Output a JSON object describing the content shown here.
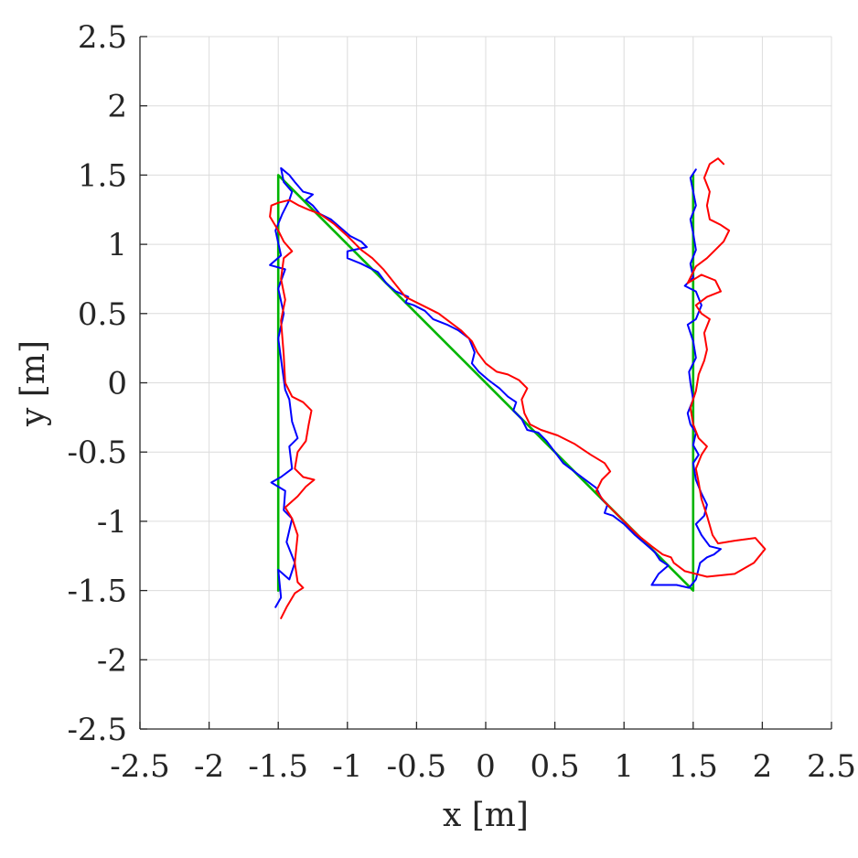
{
  "chart_data": {
    "type": "line",
    "title": "",
    "xlabel": "x [m]",
    "ylabel": "y [m]",
    "xlim": [
      -2.5,
      2.5
    ],
    "ylim": [
      -2.5,
      2.5
    ],
    "grid": true,
    "box": false,
    "xticks": [
      -2.5,
      -2,
      -1.5,
      -1,
      -0.5,
      0,
      0.5,
      1,
      1.5,
      2,
      2.5
    ],
    "xtick_labels": [
      "-2.5",
      "-2",
      "-1.5",
      "-1",
      "-0.5",
      "0",
      "0.5",
      "1",
      "1.5",
      "2",
      "2.5"
    ],
    "yticks": [
      -2.5,
      -2,
      -1.5,
      -1,
      -0.5,
      0,
      0.5,
      1,
      1.5,
      2,
      2.5
    ],
    "ytick_labels": [
      "-2.5",
      "-2",
      "-1.5",
      "-1",
      "-0.5",
      "0",
      "0.5",
      "1",
      "1.5",
      "2",
      "2.5"
    ],
    "series": [
      {
        "color": "#00b400",
        "points": [
          [
            -1.5,
            -1.5
          ],
          [
            -1.5,
            1.5
          ],
          [
            1.5,
            -1.5
          ],
          [
            1.5,
            1.5
          ]
        ]
      },
      {
        "color": "#0000ff",
        "points": [
          [
            -1.52,
            -1.62
          ],
          [
            -1.48,
            -1.55
          ],
          [
            -1.5,
            -1.35
          ],
          [
            -1.42,
            -1.42
          ],
          [
            -1.38,
            -1.3
          ],
          [
            -1.44,
            -1.15
          ],
          [
            -1.4,
            -0.98
          ],
          [
            -1.46,
            -0.92
          ],
          [
            -1.45,
            -0.78
          ],
          [
            -1.55,
            -0.72
          ],
          [
            -1.48,
            -0.68
          ],
          [
            -1.4,
            -0.62
          ],
          [
            -1.42,
            -0.46
          ],
          [
            -1.36,
            -0.4
          ],
          [
            -1.4,
            -0.28
          ],
          [
            -1.42,
            -0.12
          ],
          [
            -1.45,
            -0.05
          ],
          [
            -1.47,
            0.1
          ],
          [
            -1.5,
            0.32
          ],
          [
            -1.46,
            0.5
          ],
          [
            -1.5,
            0.68
          ],
          [
            -1.45,
            0.82
          ],
          [
            -1.56,
            0.85
          ],
          [
            -1.48,
            0.92
          ],
          [
            -1.52,
            1.1
          ],
          [
            -1.47,
            1.22
          ],
          [
            -1.42,
            1.32
          ],
          [
            -1.4,
            1.38
          ],
          [
            -1.46,
            1.45
          ],
          [
            -1.48,
            1.55
          ],
          [
            -1.42,
            1.5
          ],
          [
            -1.38,
            1.45
          ],
          [
            -1.32,
            1.38
          ],
          [
            -1.25,
            1.36
          ],
          [
            -1.3,
            1.32
          ],
          [
            -1.25,
            1.28
          ],
          [
            -1.2,
            1.22
          ],
          [
            -1.12,
            1.18
          ],
          [
            -1.05,
            1.12
          ],
          [
            -0.98,
            1.06
          ],
          [
            -0.9,
            1.02
          ],
          [
            -0.86,
            0.98
          ],
          [
            -1.0,
            0.95
          ],
          [
            -1.0,
            0.9
          ],
          [
            -0.9,
            0.86
          ],
          [
            -0.78,
            0.8
          ],
          [
            -0.72,
            0.72
          ],
          [
            -0.65,
            0.66
          ],
          [
            -0.56,
            0.62
          ],
          [
            -0.58,
            0.58
          ],
          [
            -0.52,
            0.56
          ],
          [
            -0.44,
            0.52
          ],
          [
            -0.38,
            0.46
          ],
          [
            -0.28,
            0.42
          ],
          [
            -0.2,
            0.38
          ],
          [
            -0.12,
            0.32
          ],
          [
            -0.08,
            0.22
          ],
          [
            -0.1,
            0.14
          ],
          [
            -0.05,
            0.08
          ],
          [
            0.02,
            0.02
          ],
          [
            0.1,
            -0.04
          ],
          [
            0.16,
            -0.1
          ],
          [
            0.22,
            -0.14
          ],
          [
            0.2,
            -0.2
          ],
          [
            0.26,
            -0.26
          ],
          [
            0.3,
            -0.34
          ],
          [
            0.38,
            -0.36
          ],
          [
            0.44,
            -0.42
          ],
          [
            0.5,
            -0.5
          ],
          [
            0.56,
            -0.58
          ],
          [
            0.64,
            -0.64
          ],
          [
            0.72,
            -0.7
          ],
          [
            0.8,
            -0.76
          ],
          [
            0.84,
            -0.84
          ],
          [
            0.88,
            -0.88
          ],
          [
            0.86,
            -0.94
          ],
          [
            0.92,
            -0.96
          ],
          [
            1.0,
            -1.02
          ],
          [
            1.08,
            -1.1
          ],
          [
            1.15,
            -1.16
          ],
          [
            1.22,
            -1.22
          ],
          [
            1.26,
            -1.28
          ],
          [
            1.32,
            -1.32
          ],
          [
            1.25,
            -1.38
          ],
          [
            1.2,
            -1.46
          ],
          [
            1.38,
            -1.46
          ],
          [
            1.47,
            -1.48
          ],
          [
            1.52,
            -1.42
          ],
          [
            1.55,
            -1.3
          ],
          [
            1.6,
            -1.26
          ],
          [
            1.65,
            -1.24
          ],
          [
            1.7,
            -1.2
          ],
          [
            1.62,
            -1.18
          ],
          [
            1.56,
            -1.1
          ],
          [
            1.52,
            -1.02
          ],
          [
            1.58,
            -0.96
          ],
          [
            1.6,
            -0.88
          ],
          [
            1.56,
            -0.8
          ],
          [
            1.52,
            -0.7
          ],
          [
            1.5,
            -0.58
          ],
          [
            1.54,
            -0.52
          ],
          [
            1.5,
            -0.45
          ],
          [
            1.52,
            -0.36
          ],
          [
            1.48,
            -0.3
          ],
          [
            1.46,
            -0.22
          ],
          [
            1.5,
            -0.12
          ],
          [
            1.48,
            0.0
          ],
          [
            1.47,
            0.08
          ],
          [
            1.52,
            0.18
          ],
          [
            1.5,
            0.3
          ],
          [
            1.46,
            0.42
          ],
          [
            1.52,
            0.46
          ],
          [
            1.56,
            0.56
          ],
          [
            1.52,
            0.66
          ],
          [
            1.44,
            0.7
          ],
          [
            1.5,
            0.76
          ],
          [
            1.48,
            0.86
          ],
          [
            1.52,
            0.96
          ],
          [
            1.5,
            1.08
          ],
          [
            1.48,
            1.18
          ],
          [
            1.52,
            1.28
          ],
          [
            1.5,
            1.38
          ],
          [
            1.48,
            1.48
          ],
          [
            1.52,
            1.54
          ]
        ]
      },
      {
        "color": "#ff0000",
        "points": [
          [
            -1.48,
            -1.7
          ],
          [
            -1.44,
            -1.62
          ],
          [
            -1.38,
            -1.52
          ],
          [
            -1.32,
            -1.48
          ],
          [
            -1.36,
            -1.44
          ],
          [
            -1.38,
            -1.3
          ],
          [
            -1.36,
            -1.1
          ],
          [
            -1.4,
            -0.98
          ],
          [
            -1.45,
            -0.9
          ],
          [
            -1.36,
            -0.82
          ],
          [
            -1.3,
            -0.75
          ],
          [
            -1.24,
            -0.7
          ],
          [
            -1.32,
            -0.68
          ],
          [
            -1.38,
            -0.62
          ],
          [
            -1.36,
            -0.5
          ],
          [
            -1.3,
            -0.42
          ],
          [
            -1.28,
            -0.3
          ],
          [
            -1.26,
            -0.2
          ],
          [
            -1.32,
            -0.14
          ],
          [
            -1.4,
            -0.1
          ],
          [
            -1.45,
            0.0
          ],
          [
            -1.46,
            0.2
          ],
          [
            -1.48,
            0.45
          ],
          [
            -1.45,
            0.6
          ],
          [
            -1.48,
            0.75
          ],
          [
            -1.46,
            0.9
          ],
          [
            -1.4,
            0.95
          ],
          [
            -1.46,
            1.02
          ],
          [
            -1.5,
            1.1
          ],
          [
            -1.56,
            1.2
          ],
          [
            -1.55,
            1.28
          ],
          [
            -1.5,
            1.3
          ],
          [
            -1.42,
            1.32
          ],
          [
            -1.35,
            1.28
          ],
          [
            -1.28,
            1.25
          ],
          [
            -1.2,
            1.22
          ],
          [
            -1.1,
            1.15
          ],
          [
            -1.0,
            1.06
          ],
          [
            -0.9,
            0.96
          ],
          [
            -0.82,
            0.9
          ],
          [
            -0.74,
            0.82
          ],
          [
            -0.66,
            0.72
          ],
          [
            -0.58,
            0.62
          ],
          [
            -0.5,
            0.58
          ],
          [
            -0.42,
            0.54
          ],
          [
            -0.34,
            0.5
          ],
          [
            -0.26,
            0.44
          ],
          [
            -0.18,
            0.38
          ],
          [
            -0.1,
            0.3
          ],
          [
            -0.06,
            0.22
          ],
          [
            0.0,
            0.14
          ],
          [
            0.08,
            0.08
          ],
          [
            0.16,
            0.06
          ],
          [
            0.24,
            0.02
          ],
          [
            0.3,
            -0.04
          ],
          [
            0.26,
            -0.12
          ],
          [
            0.28,
            -0.22
          ],
          [
            0.32,
            -0.3
          ],
          [
            0.4,
            -0.34
          ],
          [
            0.52,
            -0.38
          ],
          [
            0.64,
            -0.44
          ],
          [
            0.76,
            -0.52
          ],
          [
            0.86,
            -0.58
          ],
          [
            0.9,
            -0.64
          ],
          [
            0.84,
            -0.7
          ],
          [
            0.8,
            -0.78
          ],
          [
            0.86,
            -0.86
          ],
          [
            0.94,
            -0.94
          ],
          [
            1.02,
            -1.02
          ],
          [
            1.1,
            -1.1
          ],
          [
            1.2,
            -1.18
          ],
          [
            1.28,
            -1.24
          ],
          [
            1.34,
            -1.26
          ],
          [
            1.36,
            -1.3
          ],
          [
            1.44,
            -1.36
          ],
          [
            1.6,
            -1.4
          ],
          [
            1.8,
            -1.38
          ],
          [
            1.94,
            -1.3
          ],
          [
            2.02,
            -1.2
          ],
          [
            1.95,
            -1.12
          ],
          [
            1.8,
            -1.14
          ],
          [
            1.68,
            -1.16
          ],
          [
            1.64,
            -1.1
          ],
          [
            1.6,
            -0.96
          ],
          [
            1.56,
            -0.84
          ],
          [
            1.54,
            -0.72
          ],
          [
            1.52,
            -0.62
          ],
          [
            1.56,
            -0.52
          ],
          [
            1.6,
            -0.46
          ],
          [
            1.54,
            -0.4
          ],
          [
            1.5,
            -0.3
          ],
          [
            1.48,
            -0.18
          ],
          [
            1.52,
            -0.06
          ],
          [
            1.54,
            0.06
          ],
          [
            1.58,
            0.16
          ],
          [
            1.6,
            0.24
          ],
          [
            1.58,
            0.36
          ],
          [
            1.62,
            0.46
          ],
          [
            1.56,
            0.5
          ],
          [
            1.52,
            0.56
          ],
          [
            1.6,
            0.62
          ],
          [
            1.7,
            0.66
          ],
          [
            1.66,
            0.74
          ],
          [
            1.56,
            0.78
          ],
          [
            1.46,
            0.72
          ],
          [
            1.52,
            0.84
          ],
          [
            1.6,
            0.9
          ],
          [
            1.66,
            0.96
          ],
          [
            1.72,
            1.02
          ],
          [
            1.76,
            1.1
          ],
          [
            1.7,
            1.14
          ],
          [
            1.62,
            1.18
          ],
          [
            1.6,
            1.28
          ],
          [
            1.62,
            1.38
          ],
          [
            1.58,
            1.48
          ],
          [
            1.62,
            1.58
          ],
          [
            1.68,
            1.62
          ],
          [
            1.72,
            1.58
          ]
        ]
      }
    ]
  }
}
